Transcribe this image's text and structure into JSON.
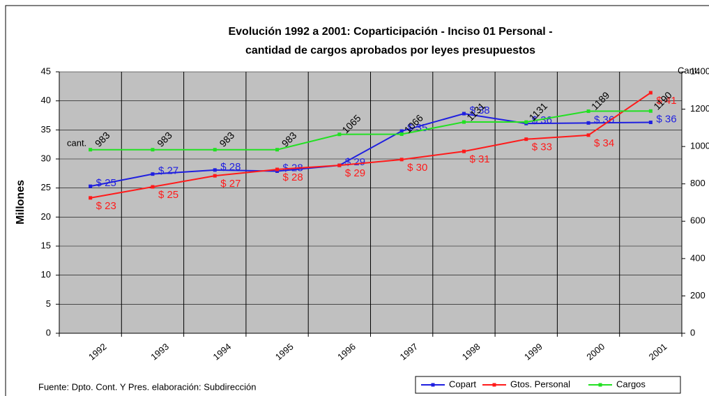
{
  "chart_data": {
    "type": "line",
    "title": "Evolución 1992 a 2001: Coparticipación - Inciso 01 Personal -",
    "subtitle": "cantidad de cargos aprobados por leyes presupuestos",
    "ylabel": "Millones",
    "y2label": "Cant.",
    "annotation": "cant.",
    "source": "Fuente: Dpto. Cont. Y Pres. elaboración: Subdirección",
    "categories": [
      "1992",
      "1993",
      "1994",
      "1995",
      "1996",
      "1997",
      "1998",
      "1999",
      "2000",
      "2001"
    ],
    "series": [
      {
        "name": "Copart",
        "color": "#1f1fe0",
        "values": [
          25.3,
          27.4,
          28.1,
          27.9,
          28.9,
          34.8,
          37.8,
          36.1,
          36.2,
          36.3
        ],
        "value_labels": [
          "$ 25",
          "$ 27",
          "$ 28",
          "$ 28",
          "$ 29",
          "$ 35",
          "$ 38",
          "$ 36",
          "$ 36",
          "$ 36"
        ]
      },
      {
        "name": "Gtos. Personal",
        "color": "#ff1a1a",
        "values": [
          23.3,
          25.2,
          27.1,
          28.2,
          28.9,
          29.9,
          31.3,
          33.4,
          34.1,
          41.4
        ],
        "value_labels": [
          "$ 23",
          "$ 25",
          "$ 27",
          "$ 28",
          "$ 29",
          "$ 30",
          "$ 31",
          "$ 33",
          "$ 34",
          "$ 41"
        ]
      },
      {
        "name": "Cargos",
        "color": "#22e022",
        "axis": "y2",
        "values": [
          983,
          983,
          983,
          983,
          1065,
          1066,
          1131,
          1131,
          1189,
          1190
        ]
      }
    ],
    "ylim": [
      0,
      45
    ],
    "yticks": [
      0,
      5,
      10,
      15,
      20,
      25,
      30,
      35,
      40,
      45
    ],
    "y2lim": [
      0,
      1400
    ],
    "y2ticks": [
      0,
      200,
      400,
      600,
      800,
      1000,
      1200,
      1400
    ],
    "grid": true,
    "legend": "bottom-right"
  }
}
